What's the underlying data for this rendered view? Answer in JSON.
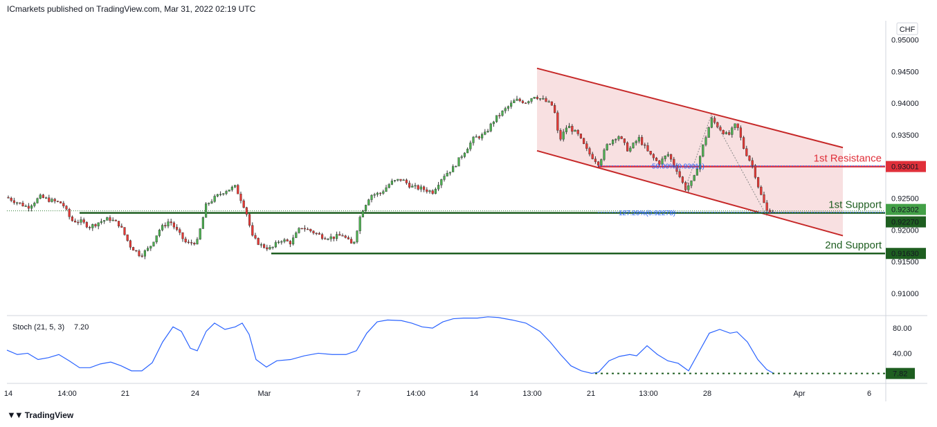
{
  "header": {
    "attribution": "ICmarkets published on TradingView.com, Mar 31, 2022 02:19 UTC"
  },
  "footer": {
    "brand": "TradingView",
    "logo_icon": "tradingview-logo-icon"
  },
  "chart_data": [
    {
      "type": "candlestick",
      "currency_label": "CHF",
      "ylim": [
        0.9065,
        0.953
      ],
      "yticks": [
        {
          "label": "0.95000",
          "value": 0.95
        },
        {
          "label": "0.94500",
          "value": 0.945
        },
        {
          "label": "0.94000",
          "value": 0.94
        },
        {
          "label": "0.93500",
          "value": 0.935
        },
        {
          "label": "0.92500",
          "value": 0.925
        },
        {
          "label": "0.92000",
          "value": 0.92
        },
        {
          "label": "0.91500",
          "value": 0.915
        },
        {
          "label": "0.91000",
          "value": 0.91
        }
      ],
      "xticks": [
        "14",
        "14:00",
        "21",
        "24",
        "Mar",
        "7",
        "14:00",
        "14",
        "13:00",
        "21",
        "13:00",
        "28",
        "Apr",
        "6"
      ],
      "path_points": [
        [
          0,
          0.9257
        ],
        [
          22,
          0.9245
        ],
        [
          40,
          0.9236
        ],
        [
          58,
          0.9252
        ],
        [
          75,
          0.9246
        ],
        [
          90,
          0.9242
        ],
        [
          103,
          0.9215
        ],
        [
          117,
          0.9213
        ],
        [
          130,
          0.9205
        ],
        [
          144,
          0.9213
        ],
        [
          158,
          0.9218
        ],
        [
          173,
          0.9208
        ],
        [
          188,
          0.9175
        ],
        [
          203,
          0.916
        ],
        [
          216,
          0.9172
        ],
        [
          230,
          0.92
        ],
        [
          245,
          0.9215
        ],
        [
          258,
          0.9195
        ],
        [
          270,
          0.9178
        ],
        [
          285,
          0.9182
        ],
        [
          298,
          0.924
        ],
        [
          312,
          0.9252
        ],
        [
          325,
          0.9262
        ],
        [
          340,
          0.9268
        ],
        [
          355,
          0.9232
        ],
        [
          365,
          0.9188
        ],
        [
          378,
          0.9175
        ],
        [
          392,
          0.917
        ],
        [
          405,
          0.9185
        ],
        [
          420,
          0.918
        ],
        [
          435,
          0.9205
        ],
        [
          450,
          0.9198
        ],
        [
          465,
          0.919
        ],
        [
          480,
          0.9188
        ],
        [
          495,
          0.9192
        ],
        [
          510,
          0.9175
        ],
        [
          522,
          0.9228
        ],
        [
          535,
          0.9255
        ],
        [
          550,
          0.9258
        ],
        [
          565,
          0.9275
        ],
        [
          580,
          0.928
        ],
        [
          595,
          0.9268
        ],
        [
          610,
          0.9265
        ],
        [
          625,
          0.926
        ],
        [
          640,
          0.9285
        ],
        [
          655,
          0.9298
        ],
        [
          670,
          0.9322
        ],
        [
          685,
          0.9345
        ],
        [
          700,
          0.935
        ],
        [
          715,
          0.9375
        ],
        [
          730,
          0.939
        ],
        [
          745,
          0.9405
        ],
        [
          760,
          0.9402
        ],
        [
          772,
          0.9412
        ],
        [
          785,
          0.9405
        ],
        [
          800,
          0.9395
        ],
        [
          808,
          0.934
        ],
        [
          820,
          0.9365
        ],
        [
          835,
          0.935
        ],
        [
          850,
          0.9322
        ],
        [
          865,
          0.9305
        ],
        [
          878,
          0.9335
        ],
        [
          893,
          0.935
        ],
        [
          908,
          0.9325
        ],
        [
          923,
          0.9345
        ],
        [
          938,
          0.932
        ],
        [
          952,
          0.9305
        ],
        [
          965,
          0.932
        ],
        [
          978,
          0.9295
        ],
        [
          990,
          0.9265
        ],
        [
          1002,
          0.9278
        ],
        [
          1015,
          0.933
        ],
        [
          1028,
          0.9375
        ],
        [
          1040,
          0.936
        ],
        [
          1052,
          0.9348
        ],
        [
          1064,
          0.9368
        ],
        [
          1075,
          0.9328
        ],
        [
          1088,
          0.93
        ],
        [
          1098,
          0.926
        ],
        [
          1108,
          0.923
        ],
        [
          1120,
          0.923
        ]
      ],
      "channel": {
        "upper": [
          [
            776,
            0.9455
          ],
          [
            1218,
            0.933
          ]
        ],
        "lower": [
          [
            776,
            0.9325
          ],
          [
            1218,
            0.9191
          ]
        ],
        "fill": "#f6d6d7",
        "line_color": "#c62828"
      },
      "levels": [
        {
          "name": "1st Resistance",
          "label": "0.93001",
          "value": 0.93001,
          "color": "#e0303a"
        },
        {
          "name": "1st Support",
          "label": "0.92270",
          "value": 0.9227,
          "color": "#1e5e20"
        },
        {
          "name": "2nd Support",
          "label": "0.91630",
          "value": 0.9163,
          "color": "#1e5e20"
        }
      ],
      "last_price": {
        "label": "0.92302",
        "value": 0.92302,
        "color": "#43a047"
      },
      "fib_labels": [
        {
          "text": "50.00%(0.93011)",
          "value": 0.93011
        },
        {
          "text": "127.20%(0.92278)",
          "value": 0.92278
        }
      ],
      "colors": {
        "up": "#26a69a",
        "down": "#e53935",
        "candle_up": "#4caf50",
        "candle_down": "#e53935"
      }
    },
    {
      "type": "line",
      "title": "Stoch (21, 5, 3)",
      "value_label": "7.20",
      "ylim": [
        -8,
        100
      ],
      "yticks": [
        {
          "label": "80.00",
          "value": 80
        },
        {
          "label": "40.00",
          "value": 40
        }
      ],
      "last_label": "7.82",
      "last_value": 7.82,
      "line_color": "#2962ff",
      "series_points": [
        [
          10,
          45
        ],
        [
          25,
          38
        ],
        [
          40,
          40
        ],
        [
          55,
          30
        ],
        [
          70,
          33
        ],
        [
          85,
          38
        ],
        [
          100,
          28
        ],
        [
          115,
          17
        ],
        [
          130,
          17
        ],
        [
          145,
          23
        ],
        [
          160,
          26
        ],
        [
          175,
          20
        ],
        [
          190,
          12
        ],
        [
          205,
          12
        ],
        [
          220,
          25
        ],
        [
          235,
          58
        ],
        [
          250,
          82
        ],
        [
          262,
          75
        ],
        [
          275,
          48
        ],
        [
          285,
          44
        ],
        [
          298,
          75
        ],
        [
          310,
          88
        ],
        [
          325,
          78
        ],
        [
          340,
          82
        ],
        [
          350,
          88
        ],
        [
          360,
          70
        ],
        [
          370,
          30
        ],
        [
          385,
          18
        ],
        [
          400,
          28
        ],
        [
          420,
          30
        ],
        [
          440,
          36
        ],
        [
          460,
          40
        ],
        [
          480,
          38
        ],
        [
          500,
          38
        ],
        [
          515,
          44
        ],
        [
          530,
          72
        ],
        [
          545,
          90
        ],
        [
          560,
          93
        ],
        [
          580,
          92
        ],
        [
          595,
          88
        ],
        [
          610,
          82
        ],
        [
          625,
          80
        ],
        [
          640,
          90
        ],
        [
          655,
          95
        ],
        [
          670,
          96
        ],
        [
          690,
          96
        ],
        [
          705,
          98
        ],
        [
          720,
          97
        ],
        [
          740,
          93
        ],
        [
          760,
          88
        ],
        [
          780,
          75
        ],
        [
          795,
          58
        ],
        [
          810,
          38
        ],
        [
          825,
          20
        ],
        [
          840,
          12
        ],
        [
          855,
          8
        ],
        [
          865,
          10
        ],
        [
          880,
          28
        ],
        [
          895,
          35
        ],
        [
          910,
          38
        ],
        [
          920,
          36
        ],
        [
          935,
          52
        ],
        [
          950,
          38
        ],
        [
          965,
          28
        ],
        [
          980,
          24
        ],
        [
          995,
          12
        ],
        [
          1010,
          42
        ],
        [
          1025,
          72
        ],
        [
          1040,
          78
        ],
        [
          1055,
          72
        ],
        [
          1065,
          74
        ],
        [
          1080,
          58
        ],
        [
          1095,
          30
        ],
        [
          1108,
          14
        ],
        [
          1118,
          8
        ]
      ]
    }
  ]
}
